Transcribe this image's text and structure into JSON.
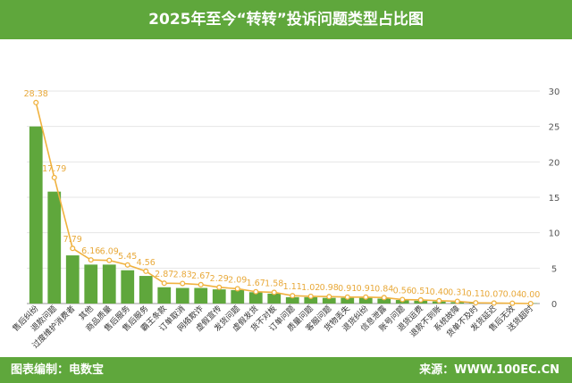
{
  "header": {
    "title": "2025年至今“转转”投诉问题类型占比图"
  },
  "footer": {
    "left": "图表编制：电数宝",
    "right": "来源：WWW.100EC.CN"
  },
  "colors": {
    "header_bg": "#5fa73c",
    "bar": "#5fa73c",
    "line": "#f0b23f",
    "label": "#e8a93a",
    "axis_text": "#555555",
    "grid": "#e6e6e6"
  },
  "chart_data": {
    "type": "bar",
    "title": "2025年至今“转转”投诉问题类型占比图",
    "categories": [
      "售后纠纷",
      "退款问题",
      "过度维护消费者",
      "其他",
      "商品质量",
      "售后服务",
      "售后服务",
      "霸王条款",
      "订单取消",
      "网络欺诈",
      "虚假宣传",
      "发货问题",
      "虚假发货",
      "货不对板",
      "订单问题",
      "质量问题",
      "客服问题",
      "货物丢失",
      "退货纠纷",
      "信息泄露",
      "账号问题",
      "退货运费",
      "退款不到账",
      "系统故障",
      "货单不及时",
      "发货延迟",
      "售后无效",
      "送货超时"
    ],
    "values": [
      25.0,
      15.8,
      6.8,
      5.5,
      5.5,
      4.7,
      3.9,
      2.3,
      2.2,
      2.2,
      2.0,
      1.9,
      1.6,
      1.4,
      0.9,
      0.9,
      0.8,
      0.8,
      0.8,
      0.7,
      0.5,
      0.4,
      0.3,
      0.2,
      0.1,
      0.1,
      0.1,
      0.05
    ],
    "line_values": [
      28.38,
      17.79,
      7.79,
      6.16,
      6.09,
      5.45,
      4.56,
      2.87,
      2.83,
      2.67,
      2.29,
      2.09,
      1.67,
      1.58,
      1.11,
      1.02,
      0.98,
      0.91,
      0.91,
      0.84,
      0.56,
      0.51,
      0.4,
      0.31,
      0.11,
      0.07,
      0.04,
      0.0
    ],
    "line_labels": [
      "28.38",
      "17.79",
      "7.79",
      "6.16",
      "6.09",
      "5.45",
      "4.56",
      "2.87",
      "2.83",
      "2.67",
      "2.29",
      "2.09",
      "1.67",
      "1.58",
      "1.11",
      "1.02",
      "0.98",
      "0.91",
      "0.91",
      "0.84",
      "0.56",
      "0.51",
      "0.40",
      "0.31",
      "0.11",
      "0.07",
      "0.04",
      "0.00"
    ],
    "ylim": [
      0,
      30
    ],
    "yticks": [
      "0",
      "5",
      "10",
      "15",
      "20",
      "25",
      "30"
    ],
    "grid": true
  }
}
